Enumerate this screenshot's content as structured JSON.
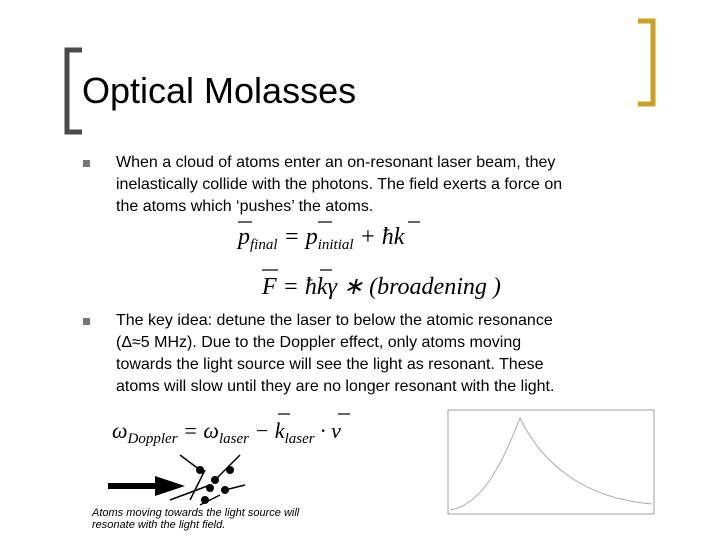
{
  "header": {
    "title": "Optical Molasses"
  },
  "bullets": [
    {
      "lines": [
        "When a cloud of atoms enter an on-resonant laser beam, they",
        "inelastically collide with the photons.  The field exerts a force on",
        "the atoms which ‘pushes’ the atoms."
      ]
    },
    {
      "lines": [
        "The key idea: detune the laser to below the atomic resonance",
        "(Δ≈5 MHz).  Due to the Doppler effect, only atoms moving",
        "towards the light source will see the light as resonant.  These",
        "atoms will slow until they are no longer resonant with the light."
      ]
    }
  ],
  "equations": [
    {
      "a": "p",
      "a_sub": "final",
      "eq": "=",
      "b": "p",
      "b_sub": "initial",
      "c": "+ ħk"
    },
    {
      "a": "F",
      "eq": "=",
      "c": "ħkγ ∗ (broadening )"
    },
    {
      "a": "ω",
      "a_sub": "Doppler",
      "eq": "=",
      "b": "ω",
      "b_sub": "laser",
      "c": "− k",
      "c_sub": "laser",
      "d": "· v"
    }
  ],
  "caption": {
    "lines": [
      "Atoms moving towards the light source will",
      "resonate with the light field."
    ]
  }
}
